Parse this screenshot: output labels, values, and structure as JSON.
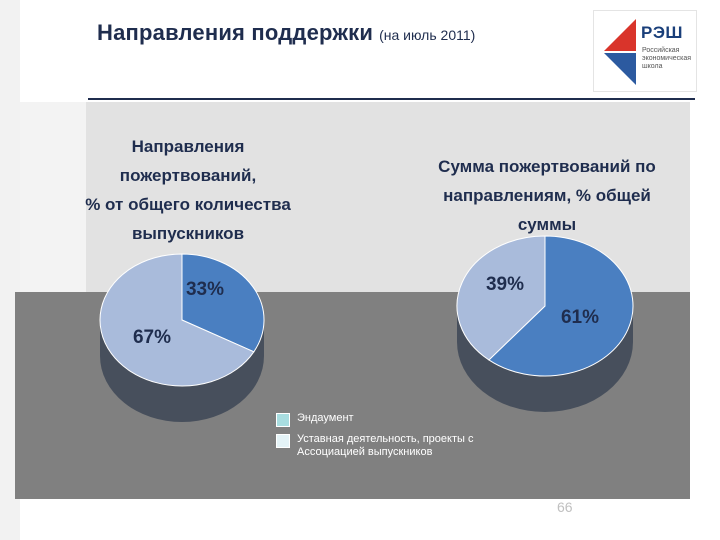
{
  "header": {
    "title": "Направления поддержки",
    "subtitle": "(на июль 2011)"
  },
  "logo": {
    "name": "РЭШ",
    "description": "Российская экономическая школа"
  },
  "chart_data": [
    {
      "type": "pie",
      "title_lines": [
        "Направления пожертвований,",
        "% от общего количества",
        "выпускников"
      ],
      "categories": [
        "Эндаумент",
        "Уставная деятельность, проекты с Ассоциацией выпускников"
      ],
      "values": [
        33,
        67
      ],
      "labels": [
        "33%",
        "67%"
      ],
      "colors": [
        "#4a7fc1",
        "#a9bbdb"
      ]
    },
    {
      "type": "pie",
      "title_lines": [
        "Сумма пожертвований по",
        "направлениям, % общей суммы"
      ],
      "categories": [
        "Эндаумент",
        "Уставная деятельность, проекты с Ассоциацией выпускников"
      ],
      "values": [
        61,
        39
      ],
      "labels": [
        "61%",
        "39%"
      ],
      "colors": [
        "#4a7fc1",
        "#a9bbdb"
      ]
    }
  ],
  "legend": [
    {
      "label": "Эндаумент",
      "color": "#a8dde0"
    },
    {
      "label": "Уставная деятельность, проекты с Ассоциацией выпускников",
      "color": "#e4f3f7"
    }
  ],
  "footer": {
    "page_number": "66"
  }
}
